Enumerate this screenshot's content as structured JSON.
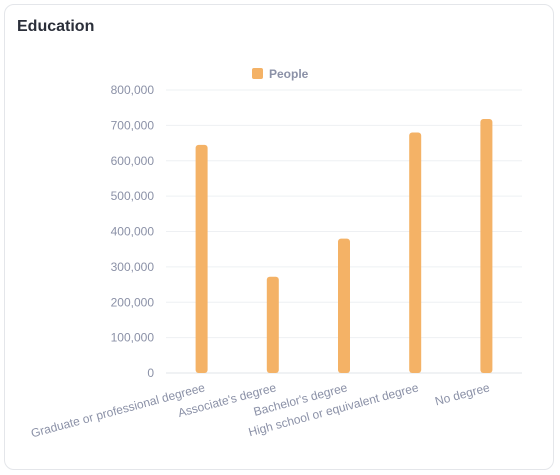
{
  "card": {
    "title": "Education"
  },
  "chart_data": {
    "type": "bar",
    "title": "",
    "xlabel": "",
    "ylabel": "",
    "categories": [
      "Graduate or professional degreee",
      "Associate's degree",
      "Bachelor's degree",
      "High school or equivalent degree",
      "No degree"
    ],
    "series": [
      {
        "name": "People",
        "values": [
          645000,
          272000,
          380000,
          680000,
          718000
        ],
        "color": "#f4b266"
      }
    ],
    "ylim": [
      0,
      800000
    ],
    "yticks": [
      0,
      100000,
      200000,
      300000,
      400000,
      500000,
      600000,
      700000,
      800000
    ],
    "ytick_labels": [
      "0",
      "100,000",
      "200,000",
      "300,000",
      "400,000",
      "500,000",
      "600,000",
      "700,000",
      "800,000"
    ],
    "grid": true,
    "legend_position": "top-center"
  }
}
